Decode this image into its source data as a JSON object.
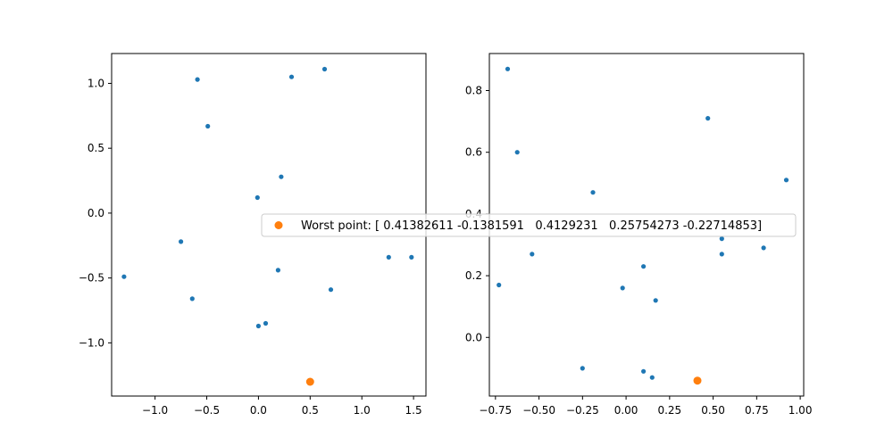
{
  "colors": {
    "points": "#1f77b4",
    "worst": "#ff7f0e",
    "axes": "#000000",
    "background": "#ffffff"
  },
  "legend": {
    "label": "Worst point: [ 0.41382611 -0.1381591   0.4129231   0.25754273 -0.22714853]",
    "placement": "center"
  },
  "chart_data": [
    {
      "type": "scatter",
      "xlim": [
        -1.42,
        1.62
      ],
      "ylim": [
        -1.41,
        1.23
      ],
      "xticks": [
        -1.0,
        -0.5,
        0.0,
        0.5,
        1.0,
        1.5
      ],
      "xtick_labels": [
        "−1.0",
        "−0.5",
        "0.0",
        "0.5",
        "1.0",
        "1.5"
      ],
      "yticks": [
        -1.0,
        -0.5,
        0.0,
        0.5,
        1.0
      ],
      "ytick_labels": [
        "−1.0",
        "−0.5",
        "0.0",
        "0.5",
        "1.0"
      ],
      "grid": false,
      "points": {
        "x": [
          -0.59,
          0.32,
          0.64,
          -0.49,
          0.22,
          -0.01,
          -0.75,
          -1.3,
          -0.64,
          0.19,
          0.7,
          0.07,
          0.0,
          1.26,
          1.48
        ],
        "y": [
          1.03,
          1.05,
          1.11,
          0.67,
          0.28,
          0.12,
          -0.22,
          -0.49,
          -0.66,
          -0.44,
          -0.59,
          -0.85,
          -0.87,
          -0.34,
          -0.34
        ]
      },
      "worst_point": {
        "x": 0.5,
        "y": -1.3
      }
    },
    {
      "type": "scatter",
      "xlim": [
        -0.785,
        1.02
      ],
      "ylim": [
        -0.19,
        0.92
      ],
      "xticks": [
        -0.75,
        -0.5,
        -0.25,
        0.0,
        0.25,
        0.5,
        0.75,
        1.0
      ],
      "xtick_labels": [
        "−0.75",
        "−0.50",
        "−0.25",
        "0.00",
        "0.25",
        "0.50",
        "0.75",
        "1.00"
      ],
      "yticks": [
        0.0,
        0.2,
        0.4,
        0.6,
        0.8
      ],
      "ytick_labels": [
        "0.0",
        "0.2",
        "0.4",
        "0.6",
        "0.8"
      ],
      "grid": false,
      "points": {
        "x": [
          -0.68,
          -0.625,
          0.47,
          -0.19,
          0.92,
          0.55,
          0.55,
          0.79,
          -0.54,
          -0.73,
          0.1,
          -0.02,
          0.17,
          -0.25,
          0.1,
          0.15
        ],
        "y": [
          0.87,
          0.6,
          0.71,
          0.47,
          0.51,
          0.32,
          0.27,
          0.29,
          0.27,
          0.17,
          0.23,
          0.16,
          0.12,
          -0.1,
          -0.11,
          -0.13
        ]
      },
      "worst_point": {
        "x": 0.41,
        "y": -0.14
      }
    }
  ]
}
